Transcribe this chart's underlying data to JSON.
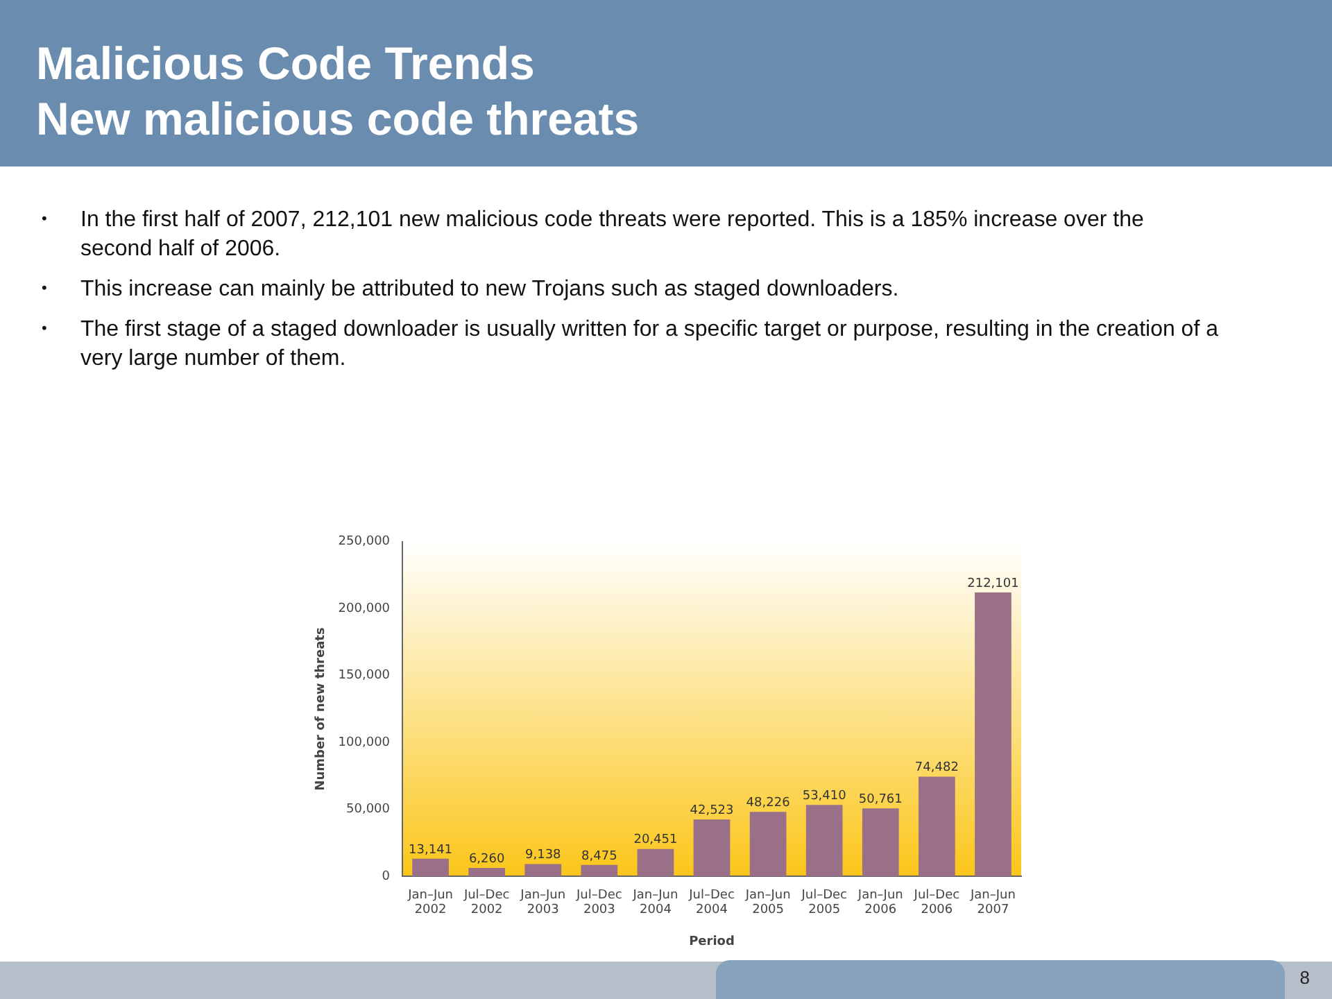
{
  "chart_data": {
    "type": "bar",
    "title": "Malicious Code Trends",
    "subtitle": "New malicious code threats",
    "xlabel": "Period",
    "ylabel": "Number of new threats",
    "categories": [
      "Jan–Jun 2002",
      "Jul–Dec 2002",
      "Jan–Jun 2003",
      "Jul–Dec 2003",
      "Jan–Jun 2004",
      "Jul–Dec 2004",
      "Jan–Jun 2005",
      "Jul–Dec 2005",
      "Jan–Jun 2006",
      "Jul–Dec 2006",
      "Jan–Jun 2007"
    ],
    "values": [
      13141,
      6260,
      9138,
      8475,
      20451,
      42523,
      48226,
      53410,
      50761,
      74482,
      212101
    ],
    "color": "#9a7088",
    "ylim": [
      0,
      250000
    ],
    "yticks": [
      {
        "value": 0,
        "label": "0"
      },
      {
        "value": 50000,
        "label": "50,000"
      },
      {
        "value": 100000,
        "label": "100,000"
      },
      {
        "value": 150000,
        "label": "150,000"
      },
      {
        "value": 200000,
        "label": "200,000"
      },
      {
        "value": 250000,
        "label": "250,000"
      }
    ],
    "value_labels": [
      "13,141",
      "6,260",
      "9,138",
      "8,475",
      "20,451",
      "42,523",
      "48,226",
      "53,410",
      "50,761",
      "74,482",
      "212,101"
    ],
    "grid": false,
    "legend": false,
    "annotations": [
      "• In the first half of 2007, 212,101 new malicious code threats were reported. This is a 185% increase over the second half of 2006.",
      "• This increase can mainly be attributed to new Trojans such as staged downloaders.",
      "• The first stage of a staged downloader is usually written for a specific target or purpose, resulting in the creation of a very large number of them.",
      "8"
    ]
  }
}
